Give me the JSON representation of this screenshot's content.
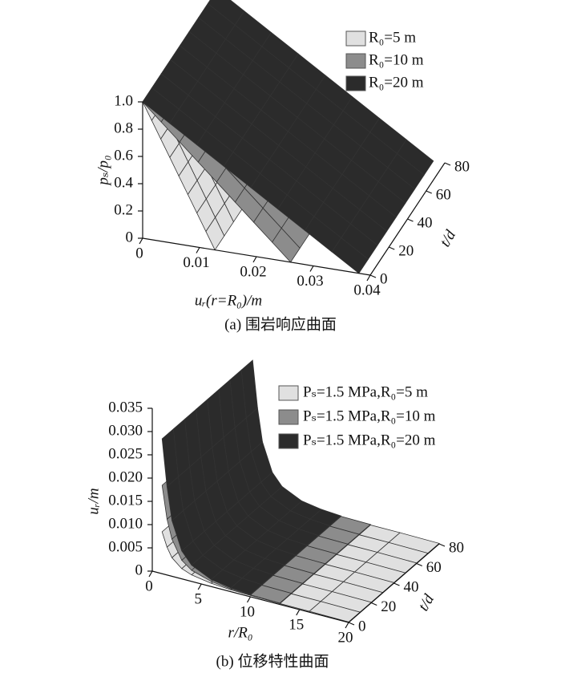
{
  "chart_data": [
    {
      "type": "surface3d",
      "caption": "(a) 围岩响应曲面",
      "zlabel": "pₛ/p₀",
      "xlabel": "uᵣ(r=R₀)/m",
      "tlabel": "t/d",
      "xlim": [
        0,
        0.04
      ],
      "xticks": [
        0,
        0.01,
        0.02,
        0.03,
        0.04
      ],
      "tlim": [
        0,
        80
      ],
      "tticks": [
        0,
        20,
        40,
        60,
        80
      ],
      "zlim": [
        0,
        1
      ],
      "zticks": [
        0,
        0.2,
        0.4,
        0.6,
        0.8,
        {
          "value": 1,
          "label": "1.0"
        }
      ],
      "series": [
        {
          "name": "R₀=5 m",
          "color": "#e0e0e0",
          "x": [
            0,
            0.0127
          ],
          "values": [
            1,
            0
          ]
        },
        {
          "name": "R₀=10 m",
          "color": "#8c8c8c",
          "x": [
            0,
            0.026
          ],
          "values": [
            1,
            0
          ]
        },
        {
          "name": "R₀=20 m",
          "color": "#2b2b2b",
          "x": [
            0,
            0.038
          ],
          "values": [
            1,
            0
          ]
        }
      ]
    },
    {
      "type": "surface3d",
      "caption": "(b) 位移特性曲面",
      "zlabel": "uᵣ/m",
      "xlabel": "r/R₀",
      "tlabel": "t/d",
      "xlim": [
        0,
        20
      ],
      "xticks": [
        0,
        5,
        10,
        15,
        20
      ],
      "tlim": [
        0,
        80
      ],
      "tticks": [
        0,
        20,
        40,
        60,
        80
      ],
      "zlim": [
        0,
        0.035
      ],
      "zticks": [
        0,
        0.005,
        {
          "value": 0.01,
          "label": "0.010"
        },
        0.015,
        {
          "value": 0.02,
          "label": "0.020"
        },
        0.025,
        {
          "value": 0.03,
          "label": "0.030"
        },
        0.035
      ],
      "series": [
        {
          "name": "Pₛ=1.5 MPa,R₀=5 m",
          "color": "#e0e0e0",
          "x": [
            1,
            1.5,
            2,
            3,
            4,
            6,
            8,
            10,
            13,
            16,
            20
          ],
          "values": [
            0.009,
            0.006,
            0.004,
            0.0022,
            0.0014,
            0.0007,
            0.0004,
            0.0003,
            0.0002,
            0.0002,
            0.0001
          ]
        },
        {
          "name": "Pₛ=1.5 MPa,R₀=10 m",
          "color": "#8c8c8c",
          "x": [
            1,
            1.5,
            2,
            3,
            4,
            6,
            8,
            10,
            13
          ],
          "values": [
            0.019,
            0.012,
            0.008,
            0.004,
            0.0024,
            0.0011,
            0.0006,
            0.0004,
            0.0003
          ]
        },
        {
          "name": "Pₛ=1.5 MPa,R₀=20 m",
          "color": "#2b2b2b",
          "x": [
            1,
            1.5,
            2,
            3,
            4,
            6,
            8,
            10
          ],
          "values": [
            0.029,
            0.019,
            0.012,
            0.006,
            0.0035,
            0.0015,
            0.0008,
            0.0005
          ]
        }
      ]
    }
  ]
}
